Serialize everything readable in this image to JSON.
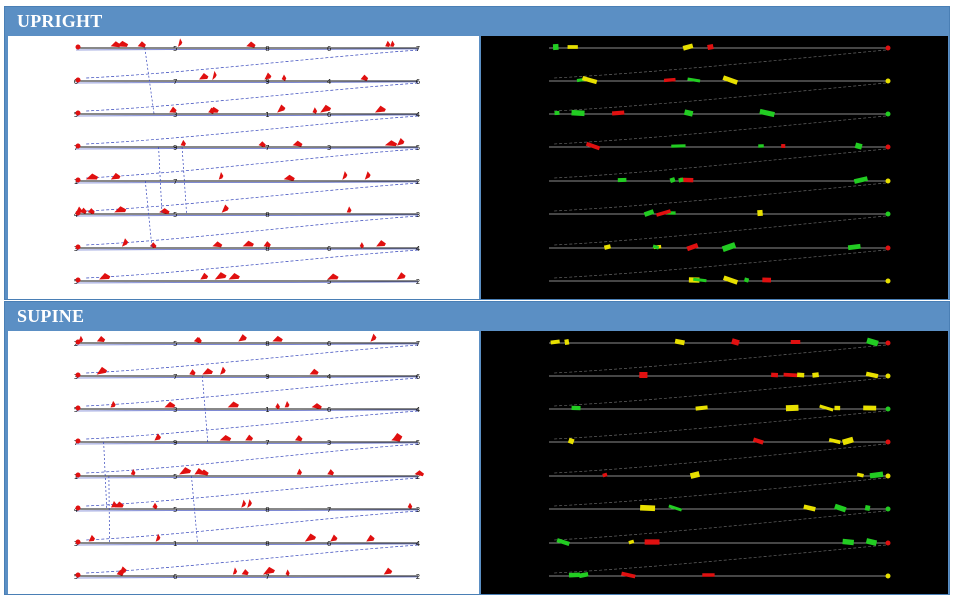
{
  "sections": [
    {
      "id": "upright",
      "title": "UPRIGHT",
      "rows": [
        {
          "labels": [
            "",
            "5",
            "8",
            "6",
            "7"
          ]
        },
        {
          "labels": [
            "6",
            "7",
            "9",
            "4",
            "6"
          ]
        },
        {
          "labels": [
            "5",
            "3",
            "1",
            "6",
            "4"
          ]
        },
        {
          "labels": [
            "7",
            "9",
            "7",
            "3",
            "5"
          ]
        },
        {
          "labels": [
            "1",
            "7",
            "",
            "",
            "2"
          ]
        },
        {
          "labels": [
            "4",
            "5",
            "8",
            "",
            "3"
          ]
        },
        {
          "labels": [
            "3",
            "",
            "8",
            "6",
            "4"
          ]
        },
        {
          "labels": [
            "5",
            "",
            "",
            "5",
            "2"
          ]
        }
      ]
    },
    {
      "id": "supine",
      "title": "SUPINE",
      "rows": [
        {
          "labels": [
            "2",
            "5",
            "8",
            "6",
            "7"
          ]
        },
        {
          "labels": [
            "3",
            "7",
            "9",
            "4",
            "6"
          ]
        },
        {
          "labels": [
            "5",
            "3",
            "1",
            "6",
            "4"
          ]
        },
        {
          "labels": [
            "7",
            "9",
            "7",
            "3",
            "5"
          ]
        },
        {
          "labels": [
            "1",
            "5",
            "",
            "",
            "2"
          ]
        },
        {
          "labels": [
            "4",
            "5",
            "8",
            "7",
            "3"
          ]
        },
        {
          "labels": [
            "3",
            "1",
            "8",
            "6",
            "4"
          ]
        },
        {
          "labels": [
            "5",
            "6",
            "7",
            "",
            "2"
          ]
        }
      ]
    }
  ],
  "colors": {
    "header_bg": "#5b8fc4",
    "marker_red": "#e01010",
    "marker_yellow": "#e8e000",
    "marker_green": "#22cc22",
    "trace_blue": "#3344bb",
    "trace_left": "#111111",
    "trace_right": "#bbbbbb"
  }
}
